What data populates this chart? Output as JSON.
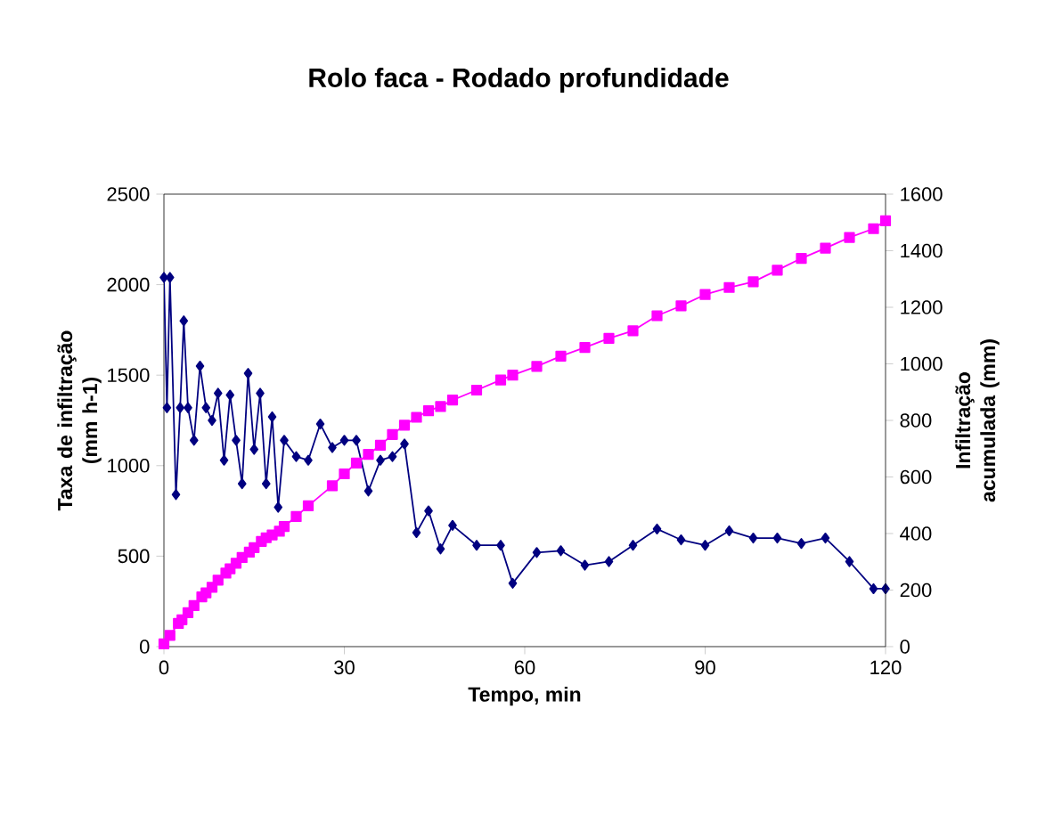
{
  "chart_data": {
    "type": "line",
    "title": "Rolo faca - Rodado profundidade",
    "xlabel": "Tempo, min",
    "ylabel": "Taxa de infiltração (mm h-1)",
    "y2label": "Infiltração acumulada (mm)",
    "xlim": [
      0,
      120
    ],
    "xticks": [
      0,
      30,
      60,
      90,
      120
    ],
    "ylim": [
      0,
      2500
    ],
    "yticks": [
      0,
      500,
      1000,
      1500,
      2000,
      2500
    ],
    "y2lim": [
      0,
      1600
    ],
    "y2ticks": [
      0,
      200,
      400,
      600,
      800,
      1000,
      1200,
      1400,
      1600
    ],
    "series": [
      {
        "color": "#000080",
        "marker": "diamond",
        "x": [
          0,
          0.5,
          1,
          2,
          2.7,
          3.3,
          4,
          5,
          6,
          7,
          8,
          9,
          10,
          11,
          12,
          13,
          14,
          15,
          16,
          17,
          18,
          19,
          20,
          22,
          24,
          26,
          28,
          30,
          32,
          34,
          36,
          38,
          40,
          42,
          44,
          46,
          48,
          52,
          56,
          58,
          62,
          66,
          70,
          74,
          78,
          82,
          86,
          90,
          94,
          98,
          102,
          106,
          110,
          114,
          118,
          120
        ],
        "values": [
          2040,
          1320,
          2040,
          840,
          1320,
          1800,
          1320,
          1140,
          1550,
          1320,
          1250,
          1400,
          1030,
          1390,
          1140,
          900,
          1510,
          1090,
          1400,
          900,
          1270,
          770,
          1140,
          1050,
          1030,
          1230,
          1100,
          1140,
          1140,
          860,
          1030,
          1050,
          1120,
          630,
          750,
          540,
          670,
          560,
          560,
          350,
          520,
          530,
          450,
          470,
          560,
          650,
          590,
          560,
          640,
          600,
          600,
          570,
          600,
          470,
          320,
          320
        ]
      },
      {
        "color": "#ff00ff",
        "marker": "square",
        "axis": "y2",
        "x": [
          0,
          1,
          2.4,
          3,
          4,
          5,
          6.3,
          7,
          8,
          9,
          10.3,
          11,
          12,
          13,
          14.2,
          15,
          16.2,
          17,
          18,
          19.2,
          20,
          22,
          24,
          28,
          30,
          32,
          34,
          36,
          38,
          40,
          42,
          44,
          46,
          48,
          52,
          56,
          58,
          62,
          66,
          70,
          74,
          78,
          82,
          86,
          90,
          94,
          98,
          102,
          106,
          110,
          114,
          118,
          120
        ],
        "values": [
          10,
          40,
          82,
          95,
          120,
          145,
          176,
          190,
          210,
          235,
          260,
          275,
          295,
          315,
          334,
          350,
          372,
          385,
          395,
          408,
          425,
          460,
          498,
          569,
          611,
          649,
          680,
          712,
          750,
          783,
          811,
          834,
          849,
          872,
          907,
          943,
          960,
          991,
          1027,
          1058,
          1090,
          1117,
          1170,
          1205,
          1245,
          1270,
          1290,
          1331,
          1373,
          1409,
          1447,
          1478,
          1506
        ]
      }
    ]
  }
}
